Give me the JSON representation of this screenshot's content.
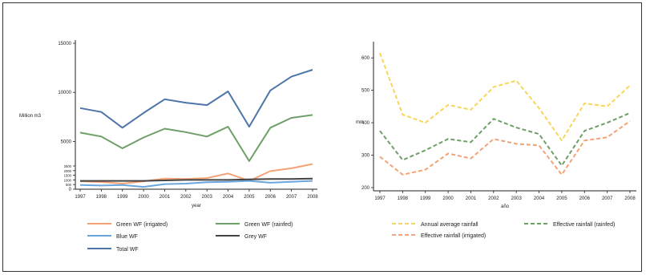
{
  "chart_data": [
    {
      "type": "line",
      "xlabel": "year",
      "ylabel": "Million m3",
      "x": [
        1997,
        1998,
        1999,
        2000,
        2001,
        2002,
        2003,
        2004,
        2005,
        2006,
        2007,
        2008
      ],
      "ylim": [
        0,
        15000
      ],
      "yticks": [
        0,
        500,
        1000,
        1500,
        2000,
        2500,
        5000,
        10000,
        15000
      ],
      "ytick_labels": [
        "0",
        "500",
        "1000",
        "1500",
        "2000",
        "2500",
        "5000",
        "10000",
        "15000"
      ],
      "legend_position": "bottom",
      "series": [
        {
          "name": "Green WF (irrigated)",
          "color": "#f4a276",
          "values": [
            850,
            780,
            600,
            850,
            1150,
            1100,
            1200,
            1700,
            900,
            1950,
            2250,
            2700
          ]
        },
        {
          "name": "Green WF (rainfed)",
          "color": "#6f9f68",
          "values": [
            5900,
            5500,
            4300,
            5400,
            6300,
            5950,
            5500,
            6500,
            3000,
            6400,
            7400,
            7700
          ]
        },
        {
          "name": "Blue WF",
          "color": "#6aa6de",
          "values": [
            450,
            400,
            450,
            250,
            550,
            600,
            750,
            800,
            900,
            700,
            800,
            900
          ]
        },
        {
          "name": "Grey WF",
          "color": "#444444",
          "values": [
            900,
            900,
            900,
            900,
            950,
            1000,
            1000,
            1000,
            1050,
            1100,
            1100,
            1150
          ]
        },
        {
          "name": "Total WF",
          "color": "#4e75a8",
          "values": [
            8400,
            8000,
            6400,
            7900,
            9300,
            8950,
            8700,
            10100,
            6500,
            10200,
            11600,
            12300
          ]
        }
      ]
    },
    {
      "type": "line",
      "xlabel": "año",
      "ylabel": "mm",
      "x": [
        1997,
        1998,
        1999,
        2000,
        2001,
        2002,
        2003,
        2004,
        2005,
        2006,
        2007,
        2008
      ],
      "ylim": [
        190,
        640
      ],
      "yticks": [
        200,
        300,
        400,
        500,
        600
      ],
      "legend_position": "bottom",
      "series": [
        {
          "name": "Annual average rainfall",
          "color": "#f7d65a",
          "dash": "dashed",
          "values": [
            615,
            425,
            400,
            455,
            440,
            510,
            530,
            445,
            345,
            460,
            450,
            515
          ]
        },
        {
          "name": "Effective rainfall (rainfed)",
          "color": "#6f9f68",
          "dash": "dashed",
          "values": [
            375,
            285,
            315,
            350,
            340,
            412,
            385,
            365,
            268,
            375,
            400,
            430
          ]
        },
        {
          "name": "Effective rainfall (irrigated)",
          "color": "#f4a276",
          "dash": "dashed",
          "values": [
            295,
            240,
            255,
            305,
            290,
            350,
            335,
            330,
            240,
            345,
            355,
            405
          ]
        }
      ]
    }
  ]
}
